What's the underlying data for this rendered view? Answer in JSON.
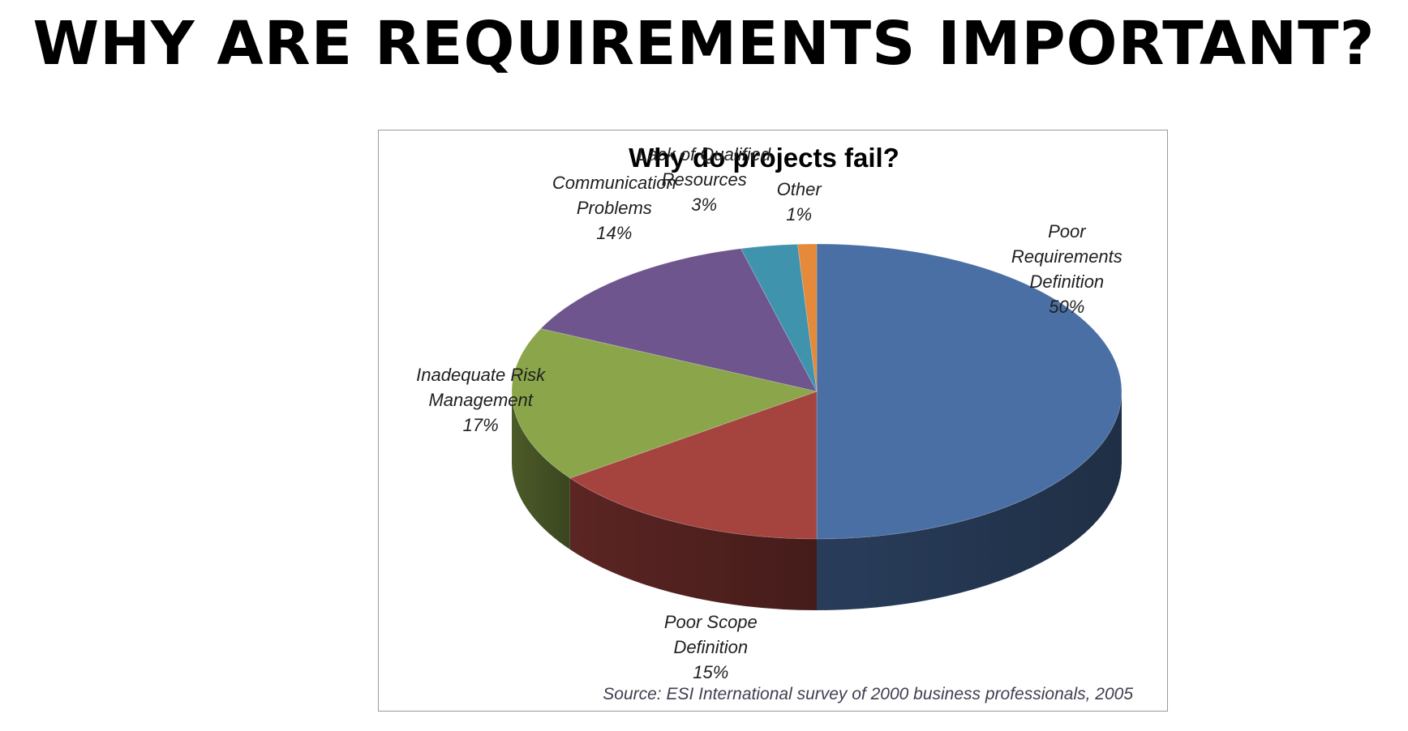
{
  "heading": "WHY ARE REQUIREMENTS IMPORTANT?",
  "chart_data": {
    "type": "pie",
    "style": "3d",
    "title": "Why do projects fail?",
    "categories": [
      "Poor Requirements Definition",
      "Poor Scope Definition",
      "Inadequate Risk Management",
      "Communication Problems",
      "Lack of Qualified Resources",
      "Other"
    ],
    "values": [
      50,
      15,
      17,
      14,
      3,
      1
    ],
    "value_labels": [
      "50%",
      "15%",
      "17%",
      "14%",
      "3%",
      "1%"
    ],
    "colors": [
      "#4a6fa5",
      "#a5433f",
      "#8aa54a",
      "#6e558d",
      "#3f93ad",
      "#e5893a"
    ],
    "labels": [
      [
        "Poor",
        "Requirements",
        "Definition",
        "50%"
      ],
      [
        "Poor Scope",
        "Definition",
        "15%"
      ],
      [
        "Inadequate Risk",
        "Management",
        "17%"
      ],
      [
        "Communication",
        "Problems",
        "14%"
      ],
      [
        "Lack of Qualified",
        "Resources",
        "3%"
      ],
      [
        "Other",
        "1%"
      ]
    ],
    "source": "Source: ESI International survey of 2000 business professionals, 2005"
  }
}
